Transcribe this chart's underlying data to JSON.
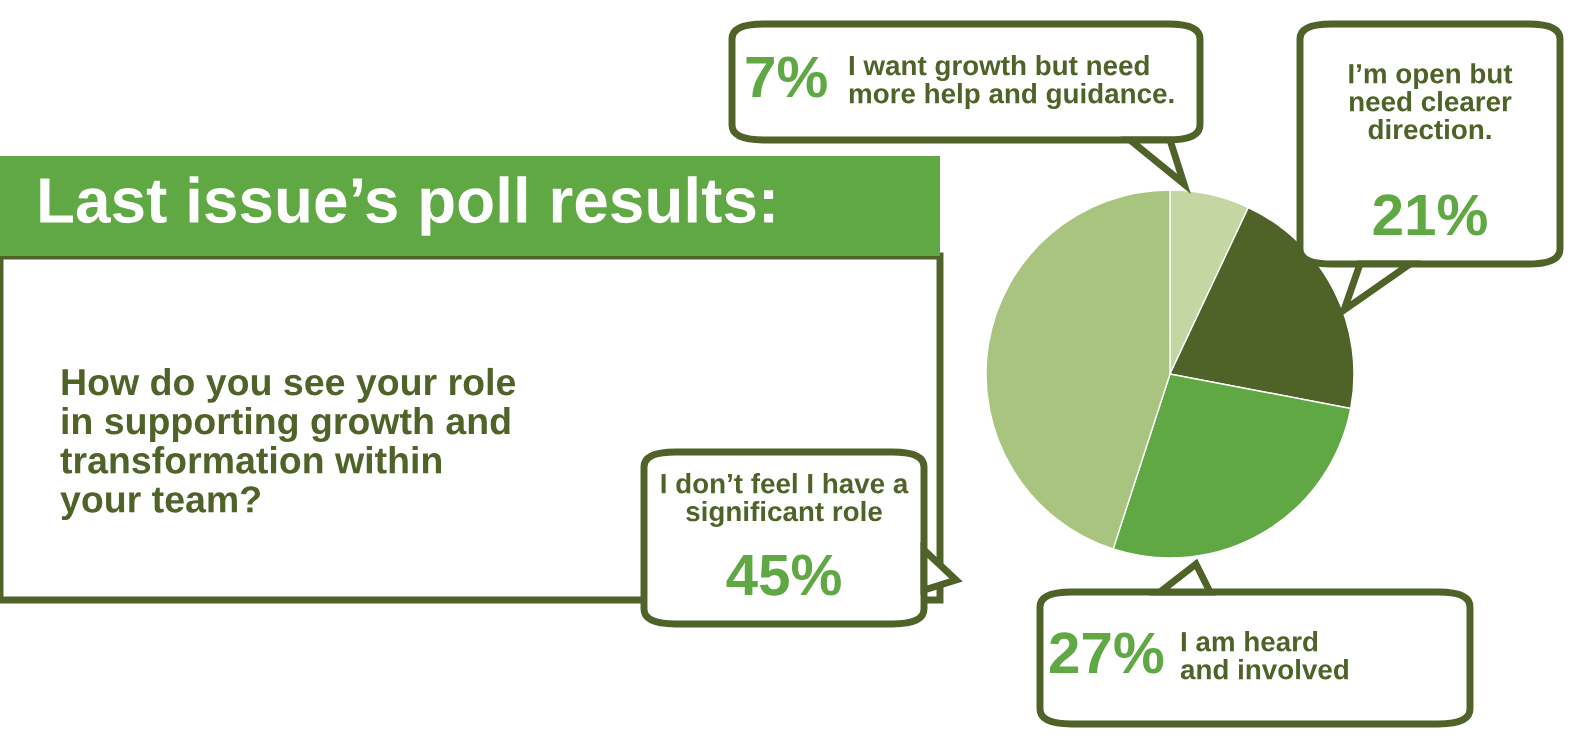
{
  "chart_data": {
    "type": "pie",
    "title": "Last issue’s poll results:",
    "subtitle": "How do you see your role in supporting growth and transformation within your team?",
    "categories": [
      "I want growth but need more help and guidance.",
      "I’m open but need clearer direction.",
      "I am heard and involved",
      "I don’t feel I have a significant role"
    ],
    "values": [
      7,
      21,
      27,
      45
    ],
    "colors": [
      "#c4d7a2",
      "#4f6228",
      "#5fa843",
      "#a9c47f"
    ],
    "value_labels": [
      "7%",
      "21%",
      "27%",
      "45%"
    ]
  }
}
